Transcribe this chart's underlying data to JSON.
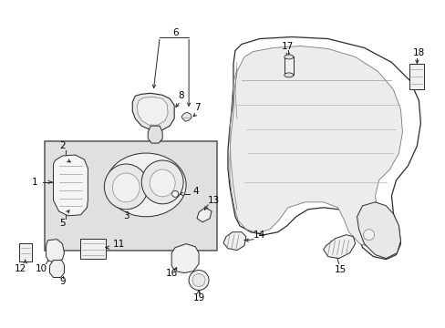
{
  "background_color": "#ffffff",
  "fig_width": 4.89,
  "fig_height": 3.6,
  "dpi": 100,
  "line_color": "#2a2a2a",
  "gray_fill": "#d8d8d8",
  "light_fill": "#f0f0f0",
  "white_fill": "#ffffff"
}
